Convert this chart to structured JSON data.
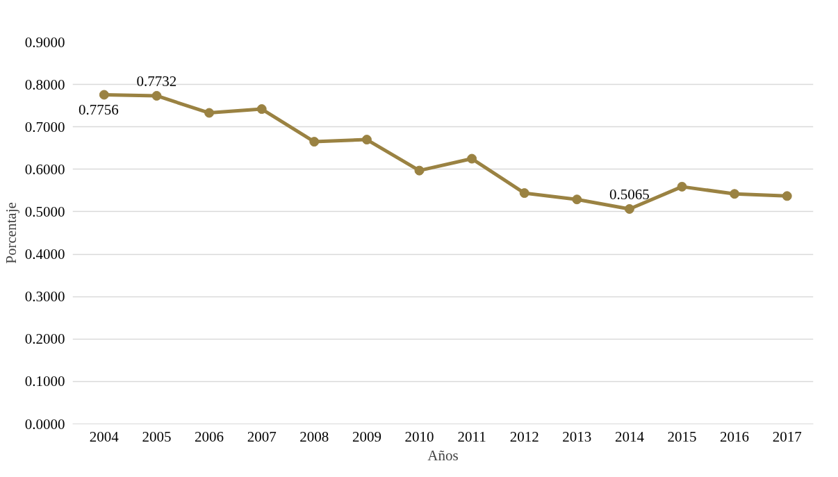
{
  "chart_data": {
    "type": "line",
    "xlabel": "Años",
    "ylabel": "Porcentaje",
    "categories": [
      "2004",
      "2005",
      "2006",
      "2007",
      "2008",
      "2009",
      "2010",
      "2011",
      "2012",
      "2013",
      "2014",
      "2015",
      "2016",
      "2017"
    ],
    "series": [
      {
        "color": "#9a8242",
        "values": [
          0.7756,
          0.7732,
          0.733,
          0.742,
          0.665,
          0.67,
          0.597,
          0.625,
          0.544,
          0.529,
          0.5065,
          0.559,
          0.542,
          0.537
        ],
        "value_labels": [
          "0.7756",
          "0.7732",
          null,
          null,
          null,
          null,
          null,
          null,
          null,
          null,
          "0.5065",
          null,
          null,
          null
        ]
      }
    ],
    "ylim": [
      0,
      0.9
    ],
    "yticks": [
      {
        "value": 0,
        "label": "0.0000"
      },
      {
        "value": 0.1,
        "label": "0.1000"
      },
      {
        "value": 0.2,
        "label": "0.2000"
      },
      {
        "value": 0.3,
        "label": "0.3000"
      },
      {
        "value": 0.4,
        "label": "0.4000"
      },
      {
        "value": 0.5,
        "label": "0.5000"
      },
      {
        "value": 0.6,
        "label": "0.6000"
      },
      {
        "value": 0.7,
        "label": "0.7000"
      },
      {
        "value": 0.8,
        "label": "0.8000"
      },
      {
        "value": 0.9,
        "label": "0.9000"
      }
    ],
    "grid": "y",
    "marker": "circle",
    "line_style": "solid"
  }
}
